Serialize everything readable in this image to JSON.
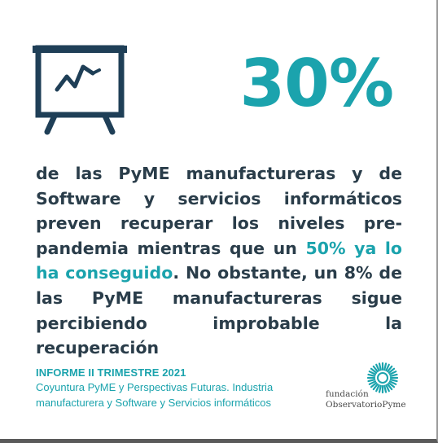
{
  "stat": {
    "value": "30%"
  },
  "body": {
    "part1": "de las PyME manufactureras y de Software y servicios informáticos preven recuperar los niveles pre-pandemia mientras que un ",
    "highlight": "50% ya lo ha conseguido",
    "part2": ". No obstante, un 8% de las PyME manufactureras sigue percibiendo improbable la recuperación"
  },
  "source": {
    "title": "INFORME II TRIMESTRE 2021",
    "description": "Coyuntura PyME y Perspectivas Futuras. Industria manufacturera y Software y Servicios informáticos"
  },
  "logo": {
    "line1": "fundación",
    "line2": "ObservatorioPyme"
  },
  "colors": {
    "accent": "#1ba3ad",
    "text": "#2a3d4a",
    "icon": "#1f3f57"
  },
  "icons": {
    "chart": "presentation-chart-icon",
    "logo": "observatorio-logo-icon"
  }
}
